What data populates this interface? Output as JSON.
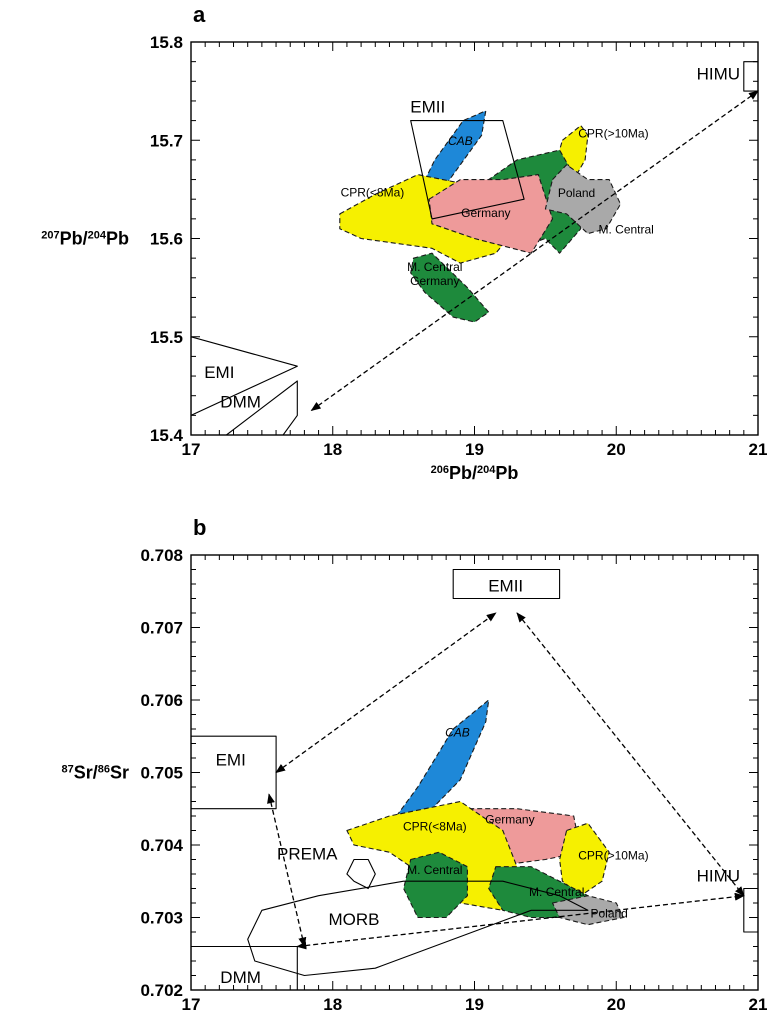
{
  "chart_data": [
    {
      "panel": "a",
      "type": "scatter",
      "xlabel": {
        "sup": "206",
        "base1": "Pb/",
        "sup2": "204",
        "base2": "Pb"
      },
      "ylabel": {
        "sup": "207",
        "base1": "Pb/",
        "sup2": "204",
        "base2": "Pb"
      },
      "xlim": [
        17,
        21
      ],
      "ylim": [
        15.4,
        15.8
      ],
      "xticks": [
        17,
        18,
        19,
        20,
        21
      ],
      "yticks": [
        15.4,
        15.5,
        15.6,
        15.7,
        15.8
      ],
      "ytick_labels": [
        "15.4",
        "15.5",
        "15.6",
        "15.7",
        "15.8"
      ],
      "end_members": [
        {
          "name": "EMII",
          "shape": "rotated_box",
          "points": [
            [
              18.55,
              15.72
            ],
            [
              19.2,
              15.72
            ],
            [
              19.35,
              15.64
            ],
            [
              18.7,
              15.62
            ]
          ],
          "label_at": [
            18.67,
            15.728
          ]
        },
        {
          "name": "HIMU",
          "shape": "box",
          "points": [
            [
              20.9,
              15.75
            ],
            [
              21.0,
              15.75
            ],
            [
              21.0,
              15.78
            ],
            [
              20.9,
              15.78
            ]
          ],
          "label_at": [
            20.72,
            15.762
          ]
        },
        {
          "name": "EMI",
          "shape": "wedge",
          "points": [
            [
              17.0,
              15.5
            ],
            [
              17.75,
              15.47
            ],
            [
              17.0,
              15.42
            ]
          ],
          "label_at": [
            17.2,
            15.458
          ]
        },
        {
          "name": "DMM",
          "shape": "box",
          "points": [
            [
              17.25,
              15.4
            ],
            [
              17.75,
              15.455
            ],
            [
              17.75,
              15.42
            ],
            [
              17.65,
              15.4
            ]
          ],
          "label_at": [
            17.35,
            15.428
          ]
        }
      ],
      "fields": [
        {
          "name": "CAB",
          "color": "#1e88d8",
          "italic": true,
          "points": [
            [
              18.55,
              15.63
            ],
            [
              18.72,
              15.68
            ],
            [
              18.92,
              15.72
            ],
            [
              19.08,
              15.73
            ],
            [
              19.05,
              15.705
            ],
            [
              18.85,
              15.665
            ],
            [
              18.62,
              15.62
            ]
          ],
          "label_at": [
            18.9,
            15.695
          ]
        },
        {
          "name": "CPR(<8Ma)",
          "color": "#f6f000",
          "points": [
            [
              18.05,
              15.625
            ],
            [
              18.3,
              15.645
            ],
            [
              18.6,
              15.665
            ],
            [
              18.95,
              15.655
            ],
            [
              19.2,
              15.65
            ],
            [
              19.35,
              15.62
            ],
            [
              19.15,
              15.585
            ],
            [
              18.9,
              15.575
            ],
            [
              18.7,
              15.59
            ],
            [
              18.45,
              15.595
            ],
            [
              18.2,
              15.6
            ],
            [
              18.05,
              15.61
            ]
          ],
          "label_at": [
            18.28,
            15.643
          ]
        },
        {
          "name": "CPR(>10Ma)",
          "color": "#f6f000",
          "points": [
            [
              19.62,
              15.7
            ],
            [
              19.75,
              15.715
            ],
            [
              19.8,
              15.705
            ],
            [
              19.78,
              15.68
            ],
            [
              19.7,
              15.66
            ],
            [
              19.6,
              15.655
            ],
            [
              19.58,
              15.68
            ]
          ],
          "label_at": [
            19.98,
            15.703
          ]
        },
        {
          "name": "M. Central",
          "color": "#1e8a3c",
          "points": [
            [
              19.0,
              15.65
            ],
            [
              19.3,
              15.68
            ],
            [
              19.6,
              15.69
            ],
            [
              19.7,
              15.665
            ],
            [
              19.75,
              15.61
            ],
            [
              19.6,
              15.585
            ],
            [
              19.5,
              15.6
            ],
            [
              19.3,
              15.59
            ],
            [
              19.1,
              15.6
            ],
            [
              18.95,
              15.63
            ]
          ],
          "label_at": [
            20.07,
            15.605
          ]
        },
        {
          "name": "Germany",
          "color": "#ee9a9a",
          "points": [
            [
              18.68,
              15.64
            ],
            [
              18.9,
              15.66
            ],
            [
              19.2,
              15.66
            ],
            [
              19.45,
              15.665
            ],
            [
              19.55,
              15.62
            ],
            [
              19.4,
              15.585
            ],
            [
              19.0,
              15.6
            ],
            [
              18.7,
              15.615
            ]
          ],
          "label_at": [
            19.08,
            15.622
          ]
        },
        {
          "name": "Poland",
          "color": "#a9a9a9",
          "points": [
            [
              19.55,
              15.66
            ],
            [
              19.65,
              15.675
            ],
            [
              19.8,
              15.66
            ],
            [
              19.95,
              15.66
            ],
            [
              20.03,
              15.635
            ],
            [
              19.93,
              15.61
            ],
            [
              19.8,
              15.605
            ],
            [
              19.65,
              15.625
            ],
            [
              19.5,
              15.63
            ]
          ],
          "label_at": [
            19.72,
            15.642
          ]
        },
        {
          "name": "M. Central Germany",
          "color": "#1e8a3c",
          "points": [
            [
              18.57,
              15.58
            ],
            [
              18.7,
              15.585
            ],
            [
              18.95,
              15.55
            ],
            [
              19.1,
              15.525
            ],
            [
              19.0,
              15.515
            ],
            [
              18.85,
              15.52
            ],
            [
              18.65,
              15.545
            ],
            [
              18.55,
              15.565
            ]
          ],
          "label_lines": [
            "M. Central",
            "Germany"
          ],
          "label_at": [
            18.72,
            15.567
          ]
        }
      ],
      "arrows": [
        {
          "from": [
            17.85,
            15.425
          ],
          "to": [
            21.0,
            15.75
          ],
          "double_headed": true
        }
      ]
    },
    {
      "panel": "b",
      "type": "scatter",
      "xlabel": {
        "sup": "206",
        "base1": "Pb/",
        "sup2": "204",
        "base2": "Pb"
      },
      "ylabel": {
        "sup": "87",
        "base1": "Sr/",
        "sup2": "86",
        "base2": "Sr"
      },
      "xlim": [
        17,
        21
      ],
      "ylim": [
        0.702,
        0.708
      ],
      "xticks": [
        17,
        18,
        19,
        20,
        21
      ],
      "yticks": [
        0.702,
        0.703,
        0.704,
        0.705,
        0.706,
        0.707,
        0.708
      ],
      "ytick_labels": [
        "0.702",
        "0.703",
        "0.704",
        "0.705",
        "0.706",
        "0.707",
        "0.708"
      ],
      "end_members": [
        {
          "name": "EMII",
          "shape": "box",
          "points": [
            [
              18.85,
              0.7074
            ],
            [
              19.6,
              0.7074
            ],
            [
              19.6,
              0.7078
            ],
            [
              18.85,
              0.7078
            ]
          ],
          "label_at": [
            19.22,
            0.7075
          ]
        },
        {
          "name": "EMI",
          "shape": "box",
          "points": [
            [
              17.0,
              0.7045
            ],
            [
              17.6,
              0.7045
            ],
            [
              17.6,
              0.7055
            ],
            [
              17.0,
              0.7055
            ]
          ],
          "label_at": [
            17.28,
            0.7051
          ]
        },
        {
          "name": "HIMU",
          "shape": "box",
          "points": [
            [
              20.9,
              0.7028
            ],
            [
              21.0,
              0.7028
            ],
            [
              21.0,
              0.7034
            ],
            [
              20.9,
              0.7034
            ]
          ],
          "label_at": [
            20.72,
            0.7035
          ]
        },
        {
          "name": "DMM",
          "shape": "box",
          "points": [
            [
              17.0,
              0.702
            ],
            [
              17.75,
              0.702
            ],
            [
              17.75,
              0.7026
            ],
            [
              17.0,
              0.7026
            ]
          ],
          "label_at": [
            17.35,
            0.7021
          ]
        },
        {
          "name": "PREMA",
          "shape": "hexagon",
          "points": [
            [
              18.15,
              0.7035
            ],
            [
              18.25,
              0.7034
            ],
            [
              18.3,
              0.7036
            ],
            [
              18.25,
              0.7038
            ],
            [
              18.15,
              0.7038
            ],
            [
              18.1,
              0.7036
            ]
          ],
          "label_at": [
            17.82,
            0.7038
          ]
        },
        {
          "name": "MORB",
          "shape": "outline",
          "points": [
            [
              17.4,
              0.7027
            ],
            [
              17.5,
              0.7031
            ],
            [
              17.9,
              0.7033
            ],
            [
              18.5,
              0.7035
            ],
            [
              19.2,
              0.7035
            ],
            [
              19.6,
              0.7033
            ],
            [
              19.8,
              0.7031
            ],
            [
              19.4,
              0.7031
            ],
            [
              18.3,
              0.7023
            ],
            [
              17.8,
              0.7022
            ],
            [
              17.45,
              0.7024
            ]
          ],
          "label_at": [
            18.15,
            0.7029
          ]
        }
      ],
      "fields": [
        {
          "name": "CAB",
          "color": "#1e88d8",
          "italic": true,
          "points": [
            [
              18.45,
              0.7044
            ],
            [
              18.6,
              0.7048
            ],
            [
              18.85,
              0.7056
            ],
            [
              19.1,
              0.706
            ],
            [
              19.08,
              0.7057
            ],
            [
              18.9,
              0.7049
            ],
            [
              18.65,
              0.7044
            ],
            [
              18.5,
              0.7043
            ]
          ],
          "label_at": [
            18.88,
            0.7055
          ]
        },
        {
          "name": "Germany",
          "color": "#ee9a9a",
          "points": [
            [
              18.85,
              0.7045
            ],
            [
              19.3,
              0.7045
            ],
            [
              19.7,
              0.7044
            ],
            [
              19.75,
              0.7039
            ],
            [
              19.5,
              0.7038
            ],
            [
              19.1,
              0.7037
            ],
            [
              18.85,
              0.7041
            ]
          ],
          "label_at": [
            19.25,
            0.7043
          ]
        },
        {
          "name": "CPR(<8Ma)",
          "color": "#f6f000",
          "points": [
            [
              18.1,
              0.7042
            ],
            [
              18.4,
              0.7044
            ],
            [
              18.9,
              0.7046
            ],
            [
              19.2,
              0.7042
            ],
            [
              19.3,
              0.7037
            ],
            [
              19.2,
              0.7031
            ],
            [
              18.9,
              0.7032
            ],
            [
              18.7,
              0.7035
            ],
            [
              18.4,
              0.7039
            ],
            [
              18.15,
              0.704
            ]
          ],
          "label_at": [
            18.72,
            0.7042
          ]
        },
        {
          "name": "CPR(>10Ma)",
          "color": "#f6f000",
          "points": [
            [
              19.65,
              0.7042
            ],
            [
              19.8,
              0.7043
            ],
            [
              19.95,
              0.7039
            ],
            [
              19.9,
              0.7035
            ],
            [
              19.75,
              0.7033
            ],
            [
              19.62,
              0.7035
            ],
            [
              19.6,
              0.7038
            ]
          ],
          "label_at": [
            19.98,
            0.7038
          ]
        },
        {
          "name": "M. Central",
          "color": "#1e8a3c",
          "points": [
            [
              18.55,
              0.7038
            ],
            [
              18.75,
              0.7039
            ],
            [
              18.95,
              0.7037
            ],
            [
              18.95,
              0.7033
            ],
            [
              18.8,
              0.703
            ],
            [
              18.6,
              0.703
            ],
            [
              18.5,
              0.7034
            ]
          ],
          "label_at": [
            18.72,
            0.7036
          ]
        },
        {
          "name": "M. Central",
          "color": "#1e8a3c",
          "points": [
            [
              19.15,
              0.7037
            ],
            [
              19.4,
              0.7037
            ],
            [
              19.6,
              0.7035
            ],
            [
              19.8,
              0.7033
            ],
            [
              19.65,
              0.703
            ],
            [
              19.4,
              0.703
            ],
            [
              19.2,
              0.7031
            ],
            [
              19.1,
              0.7034
            ]
          ],
          "label_at": [
            19.58,
            0.7033
          ]
        },
        {
          "name": "Poland",
          "color": "#a9a9a9",
          "points": [
            [
              19.55,
              0.7032
            ],
            [
              19.8,
              0.7033
            ],
            [
              20.0,
              0.7032
            ],
            [
              20.05,
              0.703
            ],
            [
              19.8,
              0.7029
            ],
            [
              19.6,
              0.703
            ]
          ],
          "label_at": [
            19.95,
            0.703
          ]
        }
      ],
      "arrows": [
        {
          "from": [
            17.6,
            0.705
          ],
          "to": [
            19.15,
            0.7072
          ],
          "double_headed": true
        },
        {
          "from": [
            19.3,
            0.7072
          ],
          "to": [
            20.9,
            0.7033
          ],
          "double_headed": true
        },
        {
          "from": [
            17.55,
            0.7047
          ],
          "to": [
            17.8,
            0.7026
          ],
          "double_headed": true
        },
        {
          "from": [
            17.75,
            0.7026
          ],
          "to": [
            20.9,
            0.7033
          ],
          "double_headed": true
        }
      ]
    }
  ]
}
